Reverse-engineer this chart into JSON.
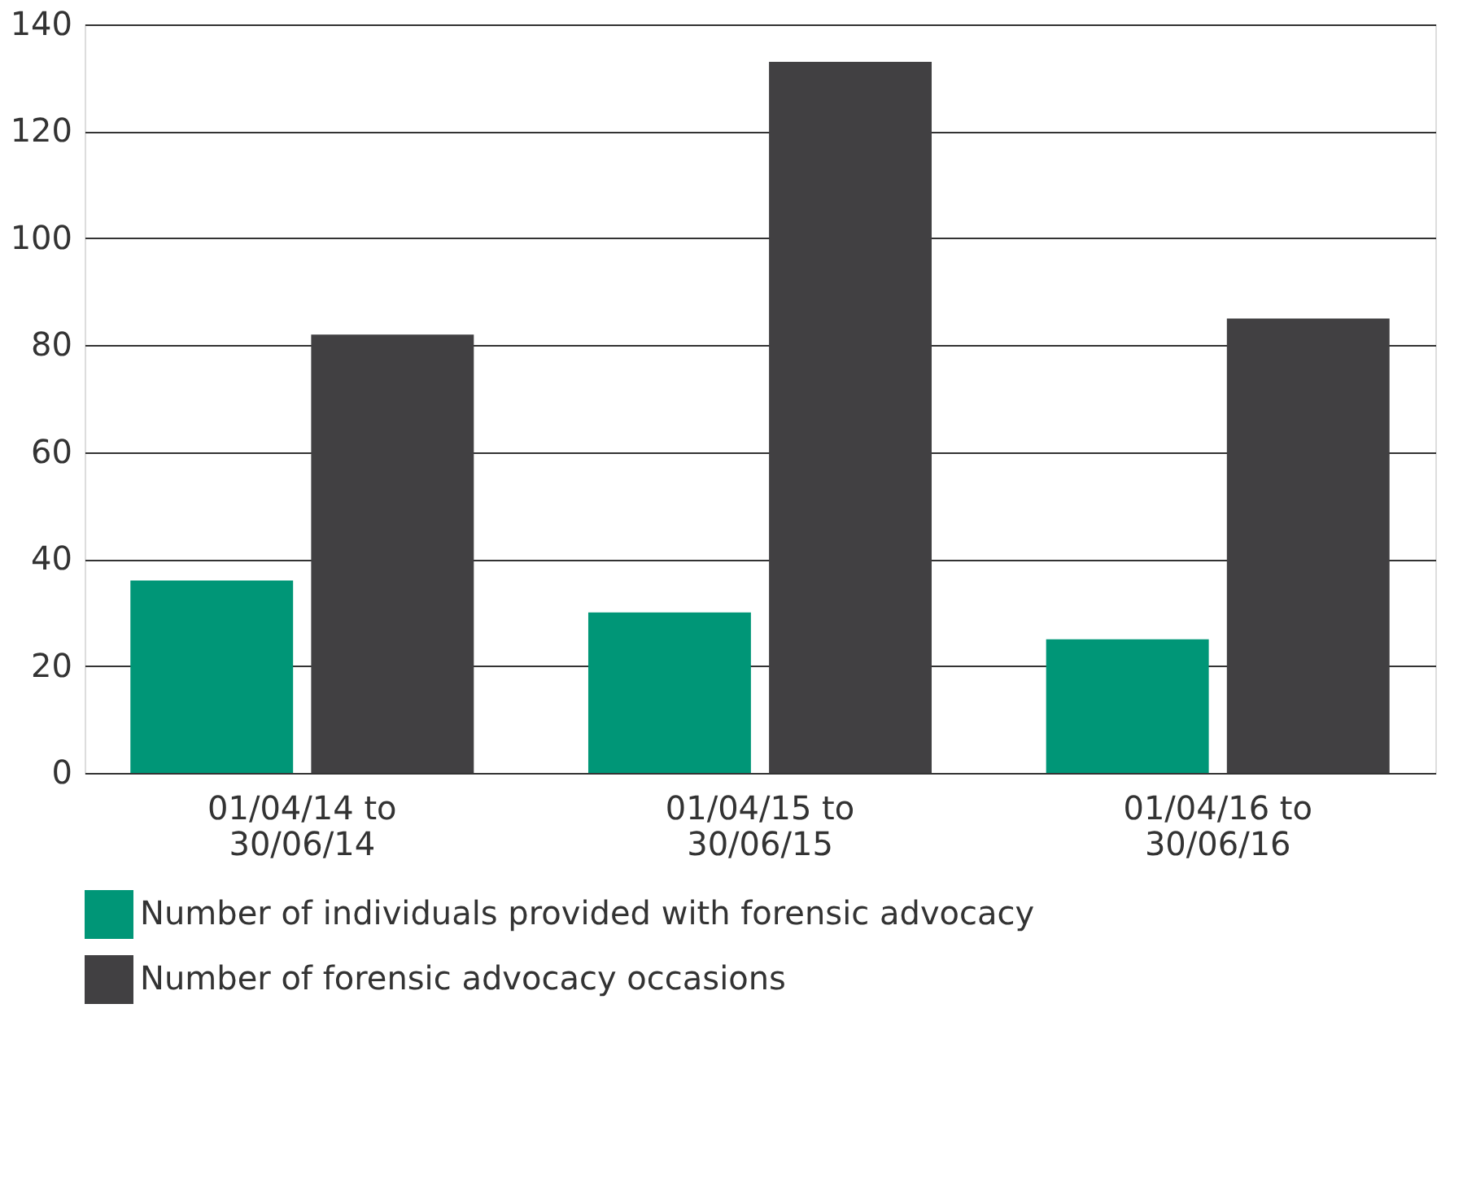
{
  "chart_data": {
    "type": "bar",
    "categories": [
      "01/04/14 to\n30/06/14",
      "01/04/15 to\n30/06/15",
      "01/04/16 to\n30/06/16"
    ],
    "series": [
      {
        "name": "Number of individuals provided with forensic advocacy",
        "color": "#009677",
        "values": [
          36,
          30,
          25
        ]
      },
      {
        "name": "Number of forensic advocacy occasions",
        "color": "#414042",
        "values": [
          82,
          133,
          85
        ]
      }
    ],
    "ylim": [
      0,
      140
    ],
    "yticks": [
      0,
      20,
      40,
      60,
      80,
      100,
      120,
      140
    ],
    "grid": "y",
    "legend": "bottom"
  }
}
